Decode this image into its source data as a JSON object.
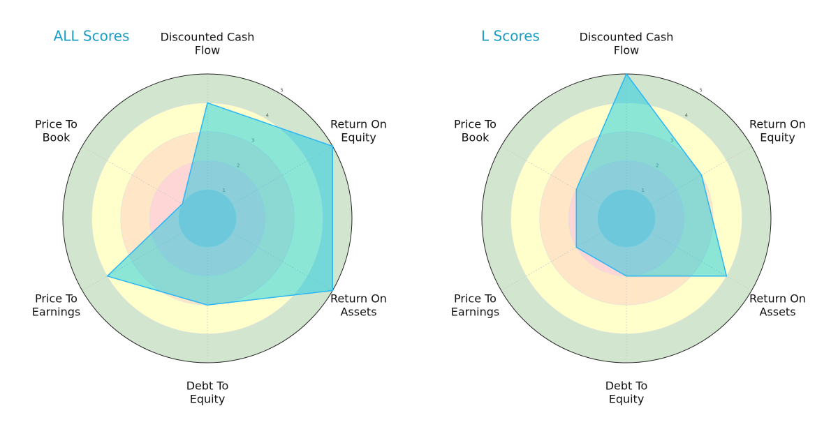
{
  "chart_data": [
    {
      "type": "radar",
      "title": "ALL Scores",
      "categories": [
        "Discounted Cash\nFlow",
        "Return On\nEquity",
        "Return On\nAssets",
        "Debt To\nEquity",
        "Price To\nEarnings",
        "Price To\nBook"
      ],
      "values": [
        4,
        5,
        5,
        3,
        4,
        1
      ],
      "color": "#29b6f6",
      "fill": "#00c8e0",
      "rlim": [
        0,
        5
      ],
      "rticks": [
        1,
        2,
        3,
        4,
        5
      ],
      "band_colors": [
        "#c8c8d8",
        "#ffd6d6",
        "#ffe6c6",
        "#ffffcc",
        "#d2e6cf"
      ]
    },
    {
      "type": "radar",
      "title": "L Scores",
      "categories": [
        "Discounted Cash\nFlow",
        "Return On\nEquity",
        "Return On\nAssets",
        "Debt To\nEquity",
        "Price To\nEarnings",
        "Price To\nBook"
      ],
      "values": [
        5,
        3,
        4,
        2,
        2,
        2
      ],
      "color": "#29b6f6",
      "fill": "#00c8e0",
      "rlim": [
        0,
        5
      ],
      "rticks": [
        1,
        2,
        3,
        4,
        5
      ],
      "band_colors": [
        "#c8c8d8",
        "#ffd6d6",
        "#ffe6c6",
        "#ffffcc",
        "#d2e6cf"
      ]
    }
  ]
}
